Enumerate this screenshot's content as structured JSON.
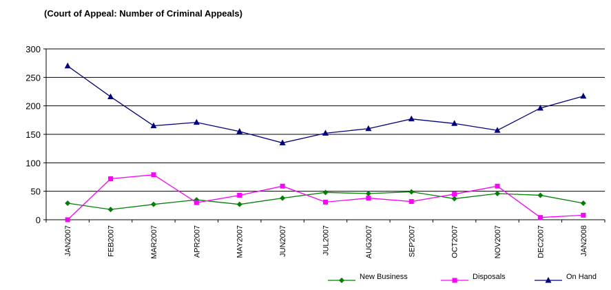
{
  "chart_data": {
    "type": "line",
    "title": "(Court of Appeal: Number of Criminal Appeals)",
    "xlabel": "",
    "ylabel": "",
    "categories": [
      "JAN2007",
      "FEB2007",
      "MAR2007",
      "APR2007",
      "MAY2007",
      "JUN2007",
      "JUL2007",
      "AUG2007",
      "SEP2007",
      "OCT2007",
      "NOV2007",
      "DEC2007",
      "JAN2008"
    ],
    "ylim": [
      0,
      300
    ],
    "yticks": [
      0,
      50,
      100,
      150,
      200,
      250,
      300
    ],
    "grid": true,
    "legend_position": "bottom",
    "series": [
      {
        "name": "New Business",
        "color": "#008000",
        "marker": "diamond",
        "values": [
          29,
          18,
          27,
          35,
          27,
          38,
          48,
          46,
          49,
          37,
          46,
          43,
          29
        ]
      },
      {
        "name": "Disposals",
        "color": "#ff00ff",
        "marker": "square",
        "values": [
          0,
          72,
          79,
          30,
          43,
          59,
          31,
          38,
          32,
          45,
          59,
          4,
          8
        ]
      },
      {
        "name": "On Hand",
        "color": "#000080",
        "marker": "triangle",
        "values": [
          270,
          216,
          165,
          171,
          155,
          135,
          152,
          160,
          177,
          169,
          157,
          196,
          217
        ]
      }
    ]
  }
}
